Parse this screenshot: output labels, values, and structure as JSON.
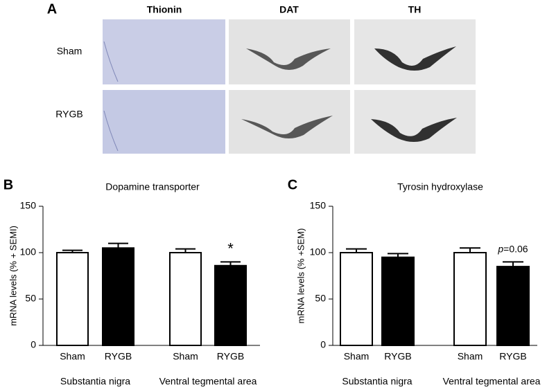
{
  "panel_labels": [
    "A",
    "B",
    "C"
  ],
  "image_panel": {
    "columns": [
      "Thionin",
      "DAT",
      "TH"
    ],
    "rows": [
      "Sham",
      "RYGB"
    ]
  },
  "chart_data": [
    {
      "type": "bar",
      "title": "Dopamine transporter",
      "ylabel": "mRNA levels (% + SEMI)",
      "categories": [
        "Sham",
        "RYGB",
        "Sham",
        "RYGB"
      ],
      "groups": [
        "Substantia nigra",
        "Ventral tegmental area"
      ],
      "values": [
        100,
        105,
        100,
        86
      ],
      "errors": [
        2.5,
        5,
        4,
        4
      ],
      "colors": [
        "#ffffff",
        "#000000",
        "#ffffff",
        "#000000"
      ],
      "ylim": [
        0,
        150
      ],
      "yticks": [
        0,
        50,
        100,
        150
      ],
      "annotations": [
        {
          "index": 3,
          "parts": [
            "*"
          ]
        }
      ]
    },
    {
      "type": "bar",
      "title": "Tyrosin hydroxylase",
      "ylabel": "mRNA levels (% +SEM)",
      "categories": [
        "Sham",
        "RYGB",
        "Sham",
        "RYGB"
      ],
      "groups": [
        "Substantia nigra",
        "Ventral tegmental area"
      ],
      "values": [
        100,
        95,
        100,
        85
      ],
      "errors": [
        4,
        4,
        5,
        5
      ],
      "colors": [
        "#ffffff",
        "#000000",
        "#ffffff",
        "#000000"
      ],
      "ylim": [
        0,
        150
      ],
      "yticks": [
        0,
        50,
        100,
        150
      ],
      "annotations": [
        {
          "index": 3,
          "parts": [
            "p",
            "=0.06"
          ]
        }
      ]
    }
  ]
}
